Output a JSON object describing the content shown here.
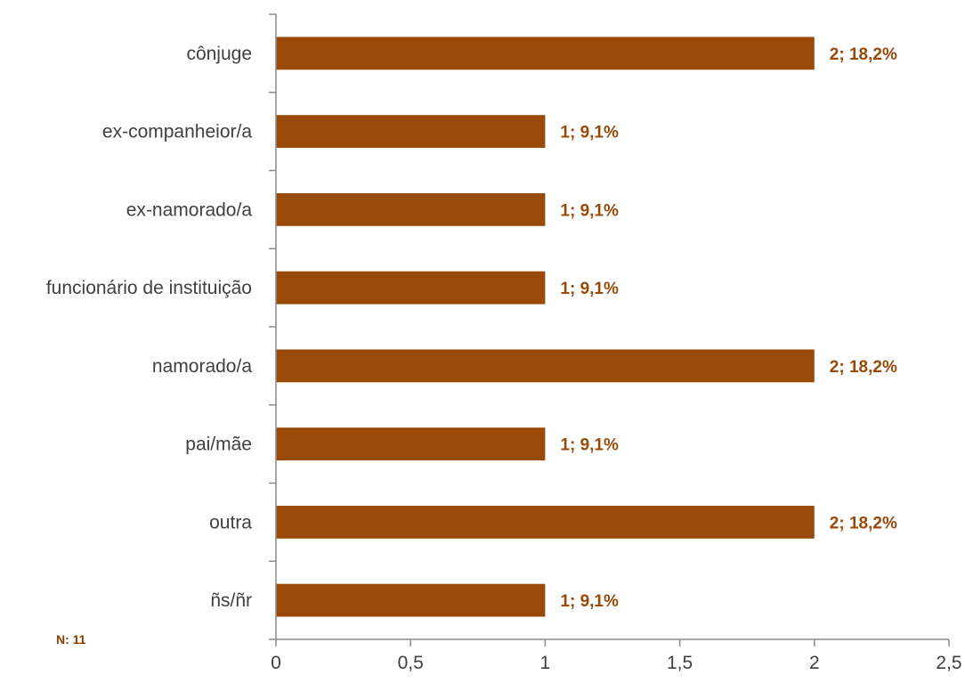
{
  "note": "N: 11",
  "chart_data": {
    "type": "bar",
    "orientation": "horizontal",
    "categories": [
      "cônjuge",
      "ex-companheior/a",
      "ex-namorado/a",
      "funcionário de instituição",
      "namorado/a",
      "pai/mãe",
      "outra",
      "ñs/ñr"
    ],
    "values": [
      2,
      1,
      1,
      1,
      2,
      1,
      2,
      1
    ],
    "data_labels": [
      "2; 18,2%",
      "1; 9,1%",
      "1; 9,1%",
      "1; 9,1%",
      "2; 18,2%",
      "1; 9,1%",
      "2; 18,2%",
      "1; 9,1%"
    ],
    "x_ticks": [
      "0",
      "0,5",
      "1",
      "1,5",
      "2",
      "2,5"
    ],
    "xlim": [
      0,
      2.5
    ],
    "title": "",
    "xlabel": "",
    "ylabel": "",
    "grid": false,
    "legend": "none",
    "bar_color": "#9a4a08",
    "label_color": "#9a4a08",
    "text_color": "#404040",
    "axis_color": "#8c8c8c"
  }
}
